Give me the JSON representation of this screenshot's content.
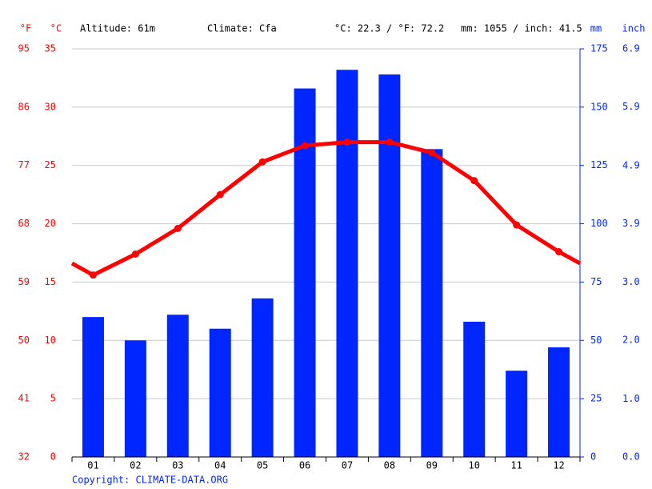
{
  "chart_data": {
    "type": "combo",
    "info": [
      "Altitude: 61m",
      "Climate: Cfa",
      "°C: 22.3 / °F: 72.2",
      "mm: 1055 / inch: 41.5"
    ],
    "copyright": "Copyright: CLIMATE-DATA.ORG",
    "categories": [
      "01",
      "02",
      "03",
      "04",
      "05",
      "06",
      "07",
      "08",
      "09",
      "10",
      "11",
      "12"
    ],
    "series": [
      {
        "type": "bar",
        "axis": "y2",
        "color": "#0026ff",
        "values": [
          60,
          50,
          61,
          55,
          68,
          158,
          166,
          164,
          132,
          58,
          37,
          47
        ]
      },
      {
        "type": "line",
        "color": "#ff0000",
        "values": [
          15.6,
          17.4,
          19.6,
          22.5,
          25.3,
          26.7,
          27.0,
          27.0,
          26.1,
          23.7,
          19.9,
          17.6
        ]
      }
    ],
    "y_label": "°C",
    "ylim": [
      0,
      35
    ],
    "yticks": [
      0,
      5,
      10,
      15,
      20,
      25,
      30,
      35
    ],
    "y2_label": "mm",
    "y2lim": [
      0,
      175
    ],
    "y2ticks": [
      0,
      25,
      50,
      75,
      100,
      125,
      150,
      175
    ],
    "f_axis": {
      "label": "°F",
      "lim": [
        32,
        95
      ],
      "ticks": [
        32,
        41,
        50,
        59,
        68,
        77,
        86,
        95
      ]
    },
    "inch_axis": {
      "label": "inch",
      "lim": [
        0,
        6.89
      ],
      "ticks": [
        {
          "value": 0,
          "label": "0.0"
        },
        {
          "value": 0.98,
          "label": "1.0"
        },
        {
          "value": 1.97,
          "label": "2.0"
        },
        {
          "value": 2.95,
          "label": "3.0"
        },
        {
          "value": 3.94,
          "label": "3.9"
        },
        {
          "value": 4.92,
          "label": "4.9"
        },
        {
          "value": 5.91,
          "label": "5.9"
        },
        {
          "value": 6.89,
          "label": "6.9"
        }
      ]
    },
    "grid": true,
    "left_color": "#ff0000",
    "right_color": "#0026ff"
  }
}
